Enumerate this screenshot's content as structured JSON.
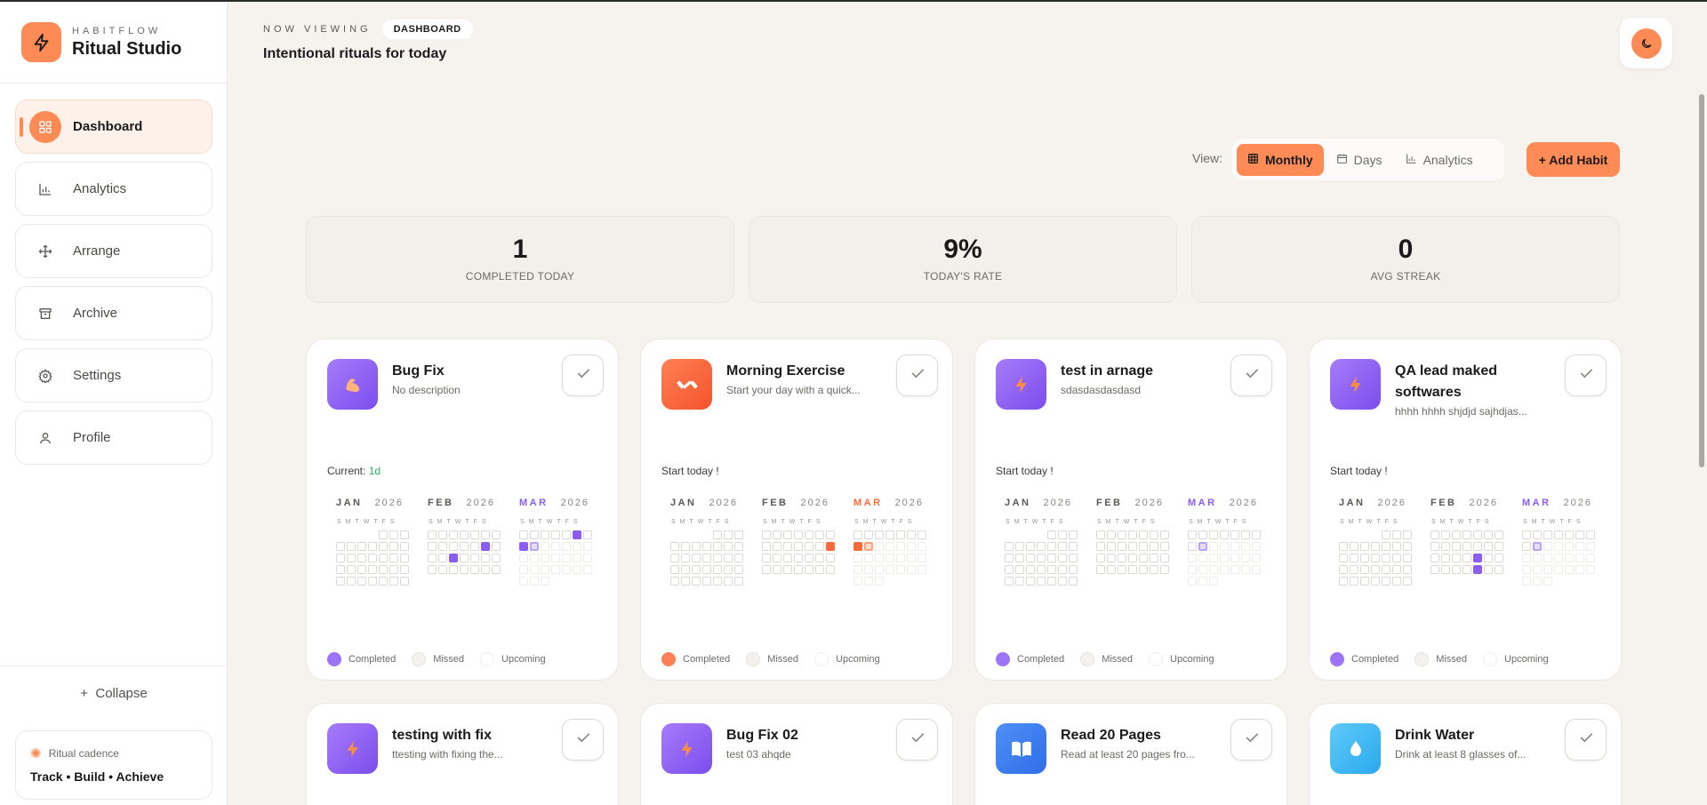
{
  "brand": {
    "kicker": "HABITFLOW",
    "name": "Ritual Studio"
  },
  "nav": [
    {
      "label": "Dashboard",
      "icon": "dashboard-icon",
      "active": true
    },
    {
      "label": "Analytics",
      "icon": "bar-chart-icon",
      "active": false
    },
    {
      "label": "Arrange",
      "icon": "move-icon",
      "active": false
    },
    {
      "label": "Archive",
      "icon": "archive-icon",
      "active": false
    },
    {
      "label": "Settings",
      "icon": "gear-icon",
      "active": false
    },
    {
      "label": "Profile",
      "icon": "user-icon",
      "active": false
    }
  ],
  "sidebar_bottom": {
    "collapse_label": "Collapse",
    "cadence_title": "Ritual cadence",
    "cadence_text": "Track • Build • Achieve"
  },
  "header": {
    "kicker": "NOW VIEWING",
    "pill": "DASHBOARD",
    "subtitle": "Intentional rituals for today"
  },
  "view": {
    "label": "View:",
    "options": [
      {
        "label": "Monthly",
        "icon": "grid-icon",
        "active": true
      },
      {
        "label": "Days",
        "icon": "calendar-icon",
        "active": false
      },
      {
        "label": "Analytics",
        "icon": "bar-chart-icon",
        "active": false
      }
    ],
    "add_label": "+ Add Habit"
  },
  "stats": [
    {
      "value": "1",
      "label": "COMPLETED TODAY"
    },
    {
      "value": "9%",
      "label": "TODAY'S RATE"
    },
    {
      "value": "0",
      "label": "AVG STREAK"
    }
  ],
  "colors": {
    "accent": "#fe8a55",
    "purple": "#8b5cf6",
    "orange": "#fe6a3a",
    "blue": "#3b82f6",
    "cyan": "#38bdf8"
  },
  "months": [
    {
      "name": "JAN",
      "year": "2026"
    },
    {
      "name": "FEB",
      "year": "2026"
    },
    {
      "name": "MAR",
      "year": "2026"
    }
  ],
  "dow_label": "SMTWTFS",
  "legend": {
    "completed": "Completed",
    "missed": "Missed",
    "upcoming": "Upcoming"
  },
  "cards": [
    {
      "title": "Bug Fix",
      "desc": "No description",
      "icon": "flexed-bicep-icon",
      "icon_color": "purple",
      "streak_prefix": "Current: ",
      "streak_value": "1d",
      "done_feb": [
        12,
        16
      ],
      "done_mar": [
        5,
        7,
        8
      ],
      "theme": "P"
    },
    {
      "title": "Morning Exercise",
      "desc": "Start your day with a quick...",
      "icon": "dumbbell-icon",
      "icon_color": "orange",
      "streak_prefix": "Start today !",
      "streak_value": "",
      "done_feb": [
        13
      ],
      "done_mar": [
        7
      ],
      "theme": "O"
    },
    {
      "title": "test in arnage",
      "desc": "sdasdasdasdasd",
      "icon": "lightning-icon",
      "icon_color": "purple",
      "streak_prefix": "Start today !",
      "streak_value": "",
      "done_feb": [],
      "done_mar": [],
      "theme": "P"
    },
    {
      "title": "QA lead maked softwares",
      "desc": "hhhh hhhh shjdjd sajhdjas...",
      "icon": "lightning-icon",
      "icon_color": "purple",
      "streak_prefix": "Start today !",
      "streak_value": "",
      "done_feb": [
        18,
        25
      ],
      "done_mar": [],
      "theme": "P"
    },
    {
      "title": "testing with fix",
      "desc": "ttesting with fixing the...",
      "icon": "lightning-icon",
      "icon_color": "purple",
      "theme": "P"
    },
    {
      "title": "Bug Fix 02",
      "desc": "test 03 ahqde",
      "icon": "lightning-icon",
      "icon_color": "purple",
      "theme": "P"
    },
    {
      "title": "Read 20 Pages",
      "desc": "Read at least 20 pages fro...",
      "icon": "book-icon",
      "icon_color": "blue",
      "theme": "P"
    },
    {
      "title": "Drink Water",
      "desc": "Drink at least 8 glasses of...",
      "icon": "water-drop-icon",
      "icon_color": "cyan",
      "theme": "P"
    }
  ]
}
